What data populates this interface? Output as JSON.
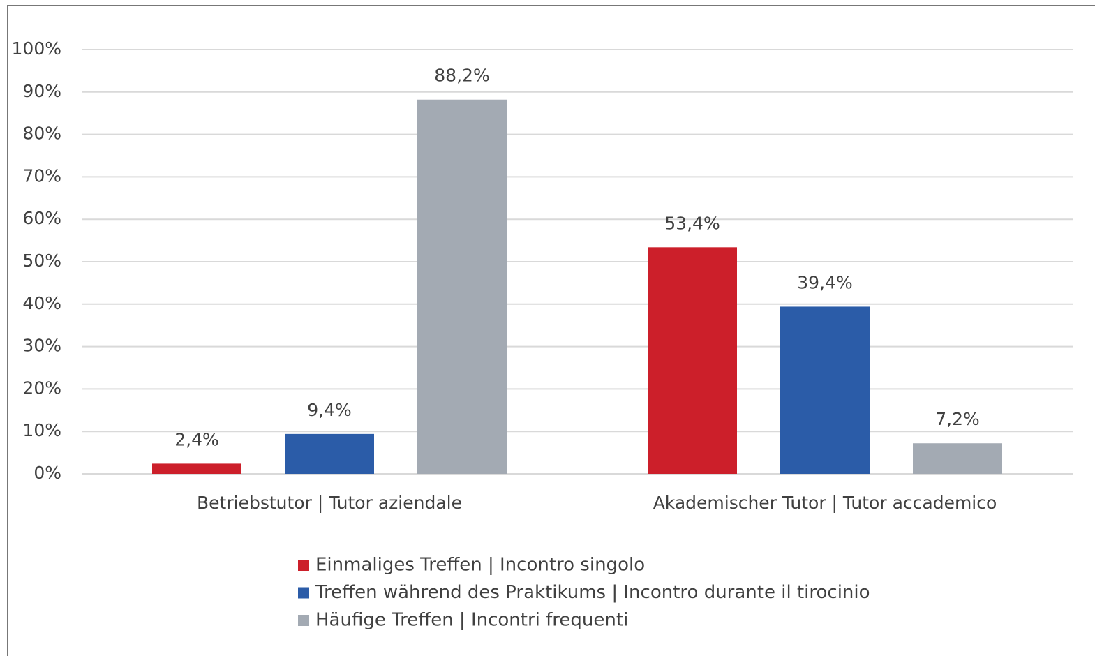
{
  "chart_data": {
    "type": "bar",
    "categories": [
      "Betriebstutor | Tutor aziendale",
      "Akademischer Tutor | Tutor accademico"
    ],
    "series": [
      {
        "name": "Einmaliges Treffen | Incontro singolo",
        "color": "#cc1f2a",
        "values": [
          2.4,
          53.4
        ],
        "value_labels": [
          "2,4%",
          "53,4%"
        ]
      },
      {
        "name": "Treffen während des Praktikums | Incontro durante il tirocinio",
        "color": "#2b5ca8",
        "values": [
          9.4,
          39.4
        ],
        "value_labels": [
          "9,4%",
          "39,4%"
        ]
      },
      {
        "name": "Häufige Treffen | Incontri frequenti",
        "color": "#a3aab3",
        "values": [
          88.2,
          7.2
        ],
        "value_labels": [
          "88,2%",
          "7,2%"
        ]
      }
    ],
    "ylim": [
      0,
      100
    ],
    "yticks": [
      {
        "value": 0,
        "label": "0%"
      },
      {
        "value": 10,
        "label": "10%"
      },
      {
        "value": 20,
        "label": "20%"
      },
      {
        "value": 30,
        "label": "30%"
      },
      {
        "value": 40,
        "label": "40%"
      },
      {
        "value": 50,
        "label": "50%"
      },
      {
        "value": 60,
        "label": "60%"
      },
      {
        "value": 70,
        "label": "70%"
      },
      {
        "value": 80,
        "label": "80%"
      },
      {
        "value": 90,
        "label": "90%"
      },
      {
        "value": 100,
        "label": "100%"
      }
    ],
    "grid": true,
    "legend": "bottom"
  }
}
